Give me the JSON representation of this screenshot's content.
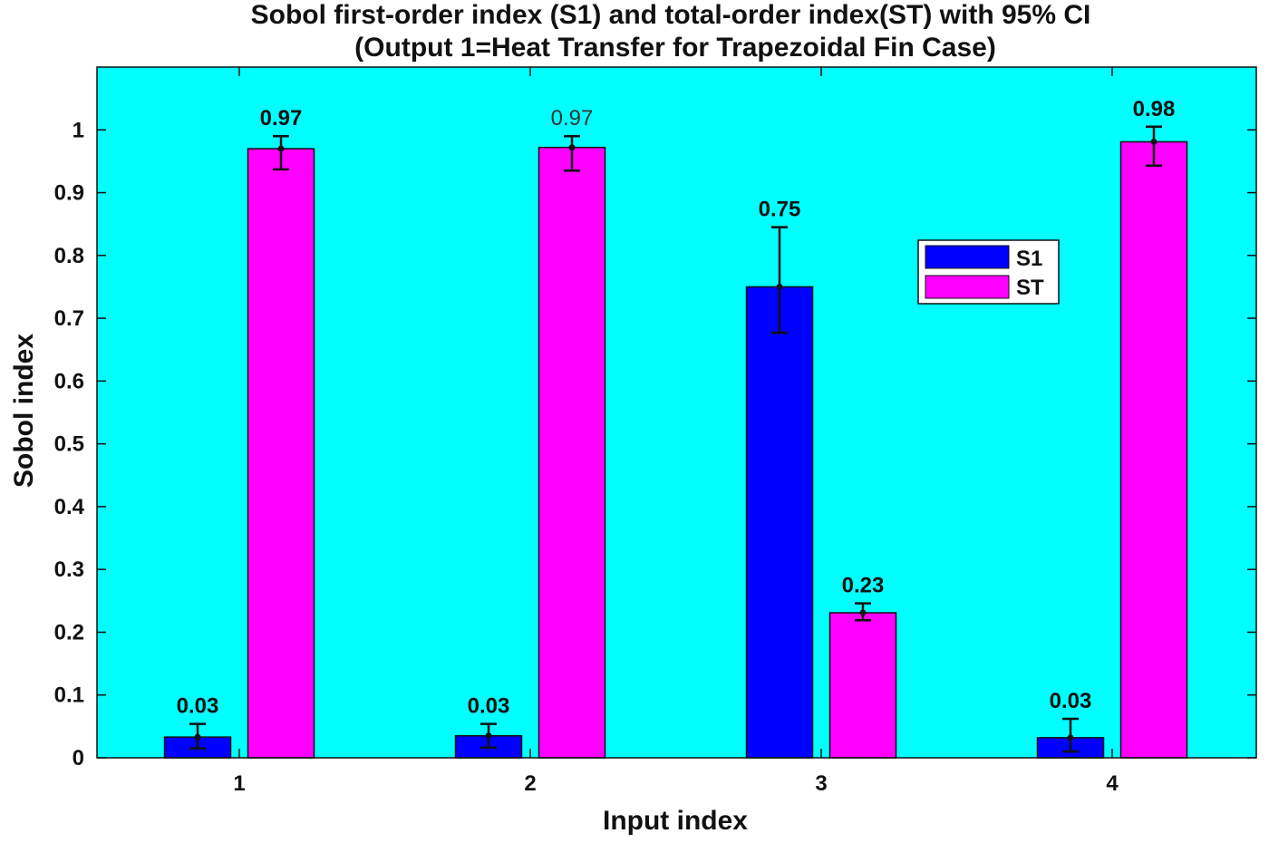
{
  "chart_data": {
    "type": "bar",
    "title": "Sobol first-order index (S1) and total-order index(ST) with 95% CI",
    "subtitle": "(Output 1=Heat Transfer for Trapezoidal Fin Case)",
    "xlabel": "Input index",
    "ylabel": "Sobol index",
    "categories": [
      "1",
      "2",
      "3",
      "4"
    ],
    "ylim": [
      0,
      1.1
    ],
    "yticks": [
      0,
      0.1,
      0.2,
      0.3,
      0.4,
      0.5,
      0.6,
      0.7,
      0.8,
      0.9,
      1
    ],
    "ytick_labels": [
      "0",
      "0.1",
      "0.2",
      "0.3",
      "0.4",
      "0.5",
      "0.6",
      "0.7",
      "0.8",
      "0.9",
      "1"
    ],
    "grid": false,
    "legend_position": "top-right (inside, near center-right)",
    "series": [
      {
        "name": "S1",
        "color": "#0000ff",
        "values": [
          0.033,
          0.035,
          0.75,
          0.032
        ],
        "ci_low": [
          0.015,
          0.016,
          0.677,
          0.01
        ],
        "ci_high": [
          0.054,
          0.054,
          0.845,
          0.062
        ],
        "labels": [
          "0.03",
          "0.03",
          "0.75",
          "0.03"
        ]
      },
      {
        "name": "ST",
        "color": "#ff00ff",
        "values": [
          0.97,
          0.972,
          0.231,
          0.981
        ],
        "ci_low": [
          0.937,
          0.935,
          0.219,
          0.943
        ],
        "ci_high": [
          0.99,
          0.99,
          0.246,
          1.005
        ],
        "labels": [
          "0.97",
          "0.97",
          "0.23",
          "0.98"
        ]
      }
    ]
  },
  "colors": {
    "plot_background": "#00ffff",
    "axis": "#111111"
  }
}
